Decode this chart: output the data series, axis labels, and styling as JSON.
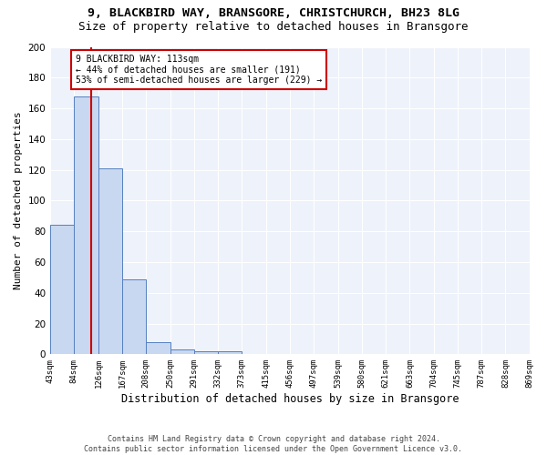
{
  "title": "9, BLACKBIRD WAY, BRANSGORE, CHRISTCHURCH, BH23 8LG",
  "subtitle": "Size of property relative to detached houses in Bransgore",
  "xlabel": "Distribution of detached houses by size in Bransgore",
  "ylabel": "Number of detached properties",
  "bin_edges": [
    43,
    84,
    126,
    167,
    208,
    250,
    291,
    332,
    373,
    415,
    456,
    497,
    539,
    580,
    621,
    663,
    704,
    745,
    787,
    828,
    869
  ],
  "bar_heights": [
    84,
    168,
    121,
    49,
    8,
    3,
    2,
    2,
    0,
    0,
    0,
    0,
    0,
    0,
    0,
    0,
    0,
    0,
    0,
    0
  ],
  "bar_color": "#c8d8f0",
  "bar_edge_color": "#5580c0",
  "background_color": "#eef2fa",
  "property_size": 113,
  "property_line_color": "#cc0000",
  "annotation_text": "9 BLACKBIRD WAY: 113sqm\n← 44% of detached houses are smaller (191)\n53% of semi-detached houses are larger (229) →",
  "annotation_box_color": "#cc0000",
  "ylim": [
    0,
    200
  ],
  "yticks": [
    0,
    20,
    40,
    60,
    80,
    100,
    120,
    140,
    160,
    180,
    200
  ],
  "footer_text": "Contains HM Land Registry data © Crown copyright and database right 2024.\nContains public sector information licensed under the Open Government Licence v3.0.",
  "title_fontsize": 9.5,
  "subtitle_fontsize": 9,
  "ylabel_fontsize": 8,
  "xlabel_fontsize": 8.5
}
